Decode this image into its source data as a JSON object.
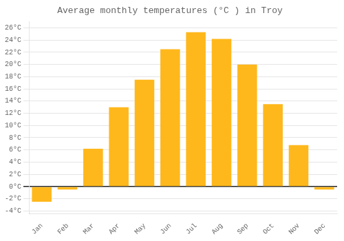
{
  "chart_data": {
    "type": "bar",
    "title": "Average monthly temperatures (°C ) in Troy",
    "categories": [
      "Jan",
      "Feb",
      "Mar",
      "Apr",
      "May",
      "Jun",
      "Jul",
      "Aug",
      "Sep",
      "Oct",
      "Nov",
      "Dec"
    ],
    "values": [
      -2.5,
      -0.5,
      6.2,
      13.0,
      17.5,
      22.5,
      25.3,
      24.2,
      20.0,
      13.5,
      6.8,
      -0.5
    ],
    "color": "#FFB81C",
    "ylim": [
      -4.5,
      27
    ],
    "yticks": [
      {
        "value": -4,
        "label": "-4°C"
      },
      {
        "value": -2,
        "label": "-2°C"
      },
      {
        "value": 0,
        "label": "0°C"
      },
      {
        "value": 2,
        "label": "2°C"
      },
      {
        "value": 4,
        "label": "4°C"
      },
      {
        "value": 6,
        "label": "6°C"
      },
      {
        "value": 8,
        "label": "8°C"
      },
      {
        "value": 10,
        "label": "10°C"
      },
      {
        "value": 12,
        "label": "12°C"
      },
      {
        "value": 14,
        "label": "14°C"
      },
      {
        "value": 16,
        "label": "16°C"
      },
      {
        "value": 18,
        "label": "18°C"
      },
      {
        "value": 20,
        "label": "20°C"
      },
      {
        "value": 22,
        "label": "22°C"
      },
      {
        "value": 24,
        "label": "24°C"
      },
      {
        "value": 26,
        "label": "26°C"
      }
    ],
    "grid": true
  }
}
